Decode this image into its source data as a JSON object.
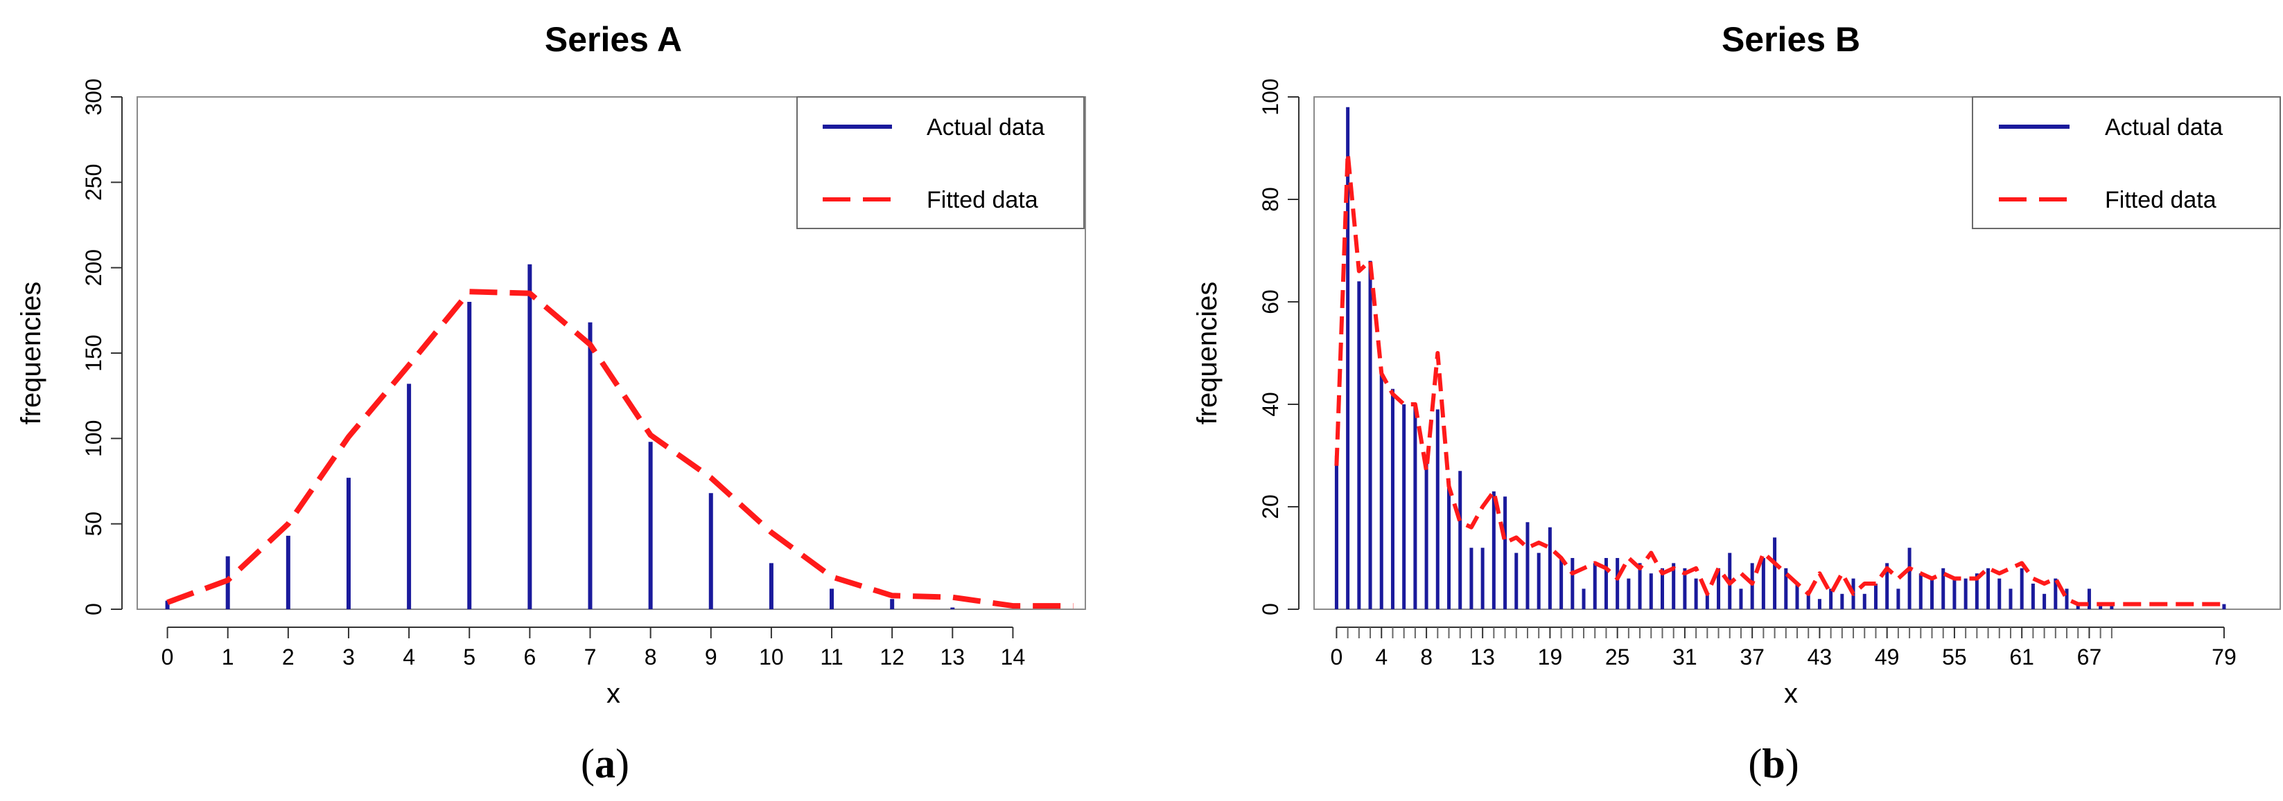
{
  "chart_data": [
    {
      "type": "bar",
      "title": "Series A",
      "xlabel": "x",
      "ylabel": "frequencies",
      "panel_label": {
        "open": "(",
        "letter": "a",
        "close": ")"
      },
      "xlim": [
        -0.5,
        15.2
      ],
      "ylim": [
        0,
        300
      ],
      "x_ticks": [
        0,
        1,
        2,
        3,
        4,
        5,
        6,
        7,
        8,
        9,
        10,
        11,
        12,
        13,
        14
      ],
      "y_ticks": [
        0,
        50,
        100,
        150,
        200,
        250,
        300
      ],
      "legend": {
        "position": "top-right",
        "entries": [
          "Actual data",
          "Fitted data"
        ]
      },
      "colors": {
        "actual": "#1a1a9c",
        "fitted": "#ff1a1a"
      },
      "series": [
        {
          "name": "Actual data",
          "style": "spikes",
          "x": [
            0,
            1,
            2,
            3,
            4,
            5,
            6,
            7,
            8,
            9,
            10,
            11,
            12,
            13
          ],
          "values": [
            5,
            31,
            43,
            77,
            132,
            180,
            202,
            168,
            98,
            68,
            27,
            12,
            6,
            1
          ]
        },
        {
          "name": "Fitted data",
          "style": "dashed-line",
          "x": [
            0,
            1,
            2,
            3,
            4,
            5,
            6,
            7,
            8,
            9,
            10,
            11,
            12,
            13,
            14,
            15
          ],
          "values": [
            4,
            17,
            50,
            101,
            143,
            186,
            185,
            155,
            102,
            77,
            45,
            19,
            8,
            7,
            2,
            2
          ]
        }
      ]
    },
    {
      "type": "bar",
      "title": "Series B",
      "xlabel": "x",
      "ylabel": "frequencies",
      "panel_label": {
        "open": "(",
        "letter": "b",
        "close": ")"
      },
      "xlim": [
        -2,
        84
      ],
      "ylim": [
        0,
        100
      ],
      "x_ticks": [
        0,
        4,
        8,
        13,
        19,
        25,
        31,
        37,
        43,
        49,
        55,
        61,
        67,
        79
      ],
      "y_ticks": [
        0,
        20,
        40,
        60,
        80,
        100
      ],
      "minor_ticks_x": [
        1,
        2,
        3,
        5,
        6,
        7,
        9,
        10,
        11,
        12,
        14,
        15,
        16,
        17,
        18,
        20,
        21,
        22,
        23,
        24,
        26,
        27,
        28,
        29,
        30,
        32,
        33,
        34,
        35,
        36,
        38,
        39,
        40,
        41,
        42,
        44,
        45,
        46,
        47,
        48,
        50,
        51,
        52,
        53,
        54,
        56,
        57,
        58,
        59,
        60,
        62,
        63,
        64,
        65,
        66,
        68,
        69
      ],
      "legend": {
        "position": "top-right",
        "entries": [
          "Actual data",
          "Fitted data"
        ]
      },
      "colors": {
        "actual": "#1a1a9c",
        "fitted": "#ff1a1a"
      },
      "series": [
        {
          "name": "Actual data",
          "style": "spikes",
          "x": [
            0,
            1,
            2,
            3,
            4,
            5,
            6,
            7,
            8,
            9,
            10,
            11,
            12,
            13,
            14,
            15,
            16,
            17,
            18,
            19,
            20,
            21,
            22,
            23,
            24,
            25,
            26,
            27,
            28,
            29,
            30,
            31,
            32,
            33,
            34,
            35,
            36,
            37,
            38,
            39,
            40,
            41,
            42,
            43,
            44,
            45,
            46,
            47,
            48,
            49,
            50,
            51,
            52,
            53,
            54,
            55,
            56,
            57,
            58,
            59,
            60,
            61,
            62,
            63,
            64,
            65,
            66,
            67,
            68,
            69,
            79
          ],
          "values": [
            30,
            98,
            64,
            68,
            46,
            43,
            40,
            40,
            30,
            39,
            25,
            27,
            12,
            12,
            23,
            22,
            11,
            17,
            11,
            16,
            10,
            10,
            4,
            9,
            10,
            10,
            6,
            9,
            7,
            8,
            9,
            8,
            6,
            3,
            8,
            11,
            4,
            9,
            10,
            14,
            8,
            5,
            3,
            2,
            4,
            3,
            6,
            3,
            5,
            9,
            4,
            12,
            7,
            6,
            8,
            6,
            6,
            7,
            8,
            6,
            4,
            8,
            5,
            3,
            6,
            4,
            1,
            4,
            1,
            1,
            1
          ]
        },
        {
          "name": "Fitted data",
          "style": "dashed-line",
          "x": [
            0,
            1,
            2,
            3,
            4,
            5,
            6,
            7,
            8,
            9,
            10,
            11,
            12,
            13,
            14,
            15,
            16,
            17,
            18,
            19,
            20,
            21,
            22,
            23,
            24,
            25,
            26,
            27,
            28,
            29,
            30,
            31,
            32,
            33,
            34,
            35,
            36,
            37,
            38,
            39,
            40,
            41,
            42,
            43,
            44,
            45,
            46,
            47,
            48,
            49,
            50,
            51,
            52,
            53,
            54,
            55,
            56,
            57,
            58,
            59,
            60,
            61,
            62,
            63,
            64,
            65,
            66,
            67,
            68,
            69,
            70,
            71,
            72,
            73,
            74,
            75,
            76,
            77,
            78,
            79
          ],
          "values": [
            28,
            89,
            66,
            68,
            46,
            42,
            40,
            40,
            27,
            50,
            24,
            17,
            16,
            20,
            23,
            13,
            14,
            12,
            13,
            12,
            10,
            7,
            8,
            9,
            8,
            6,
            10,
            8,
            11,
            7,
            8,
            7,
            8,
            3,
            8,
            5,
            7,
            5,
            11,
            9,
            7,
            5,
            3,
            7,
            3,
            7,
            3,
            5,
            5,
            8,
            6,
            8,
            7,
            6,
            7,
            6,
            6,
            6,
            8,
            7,
            8,
            9,
            6,
            5,
            6,
            2,
            1,
            1,
            1,
            1,
            1,
            1,
            1,
            1,
            1,
            1,
            1,
            1,
            1,
            1
          ]
        }
      ]
    }
  ]
}
